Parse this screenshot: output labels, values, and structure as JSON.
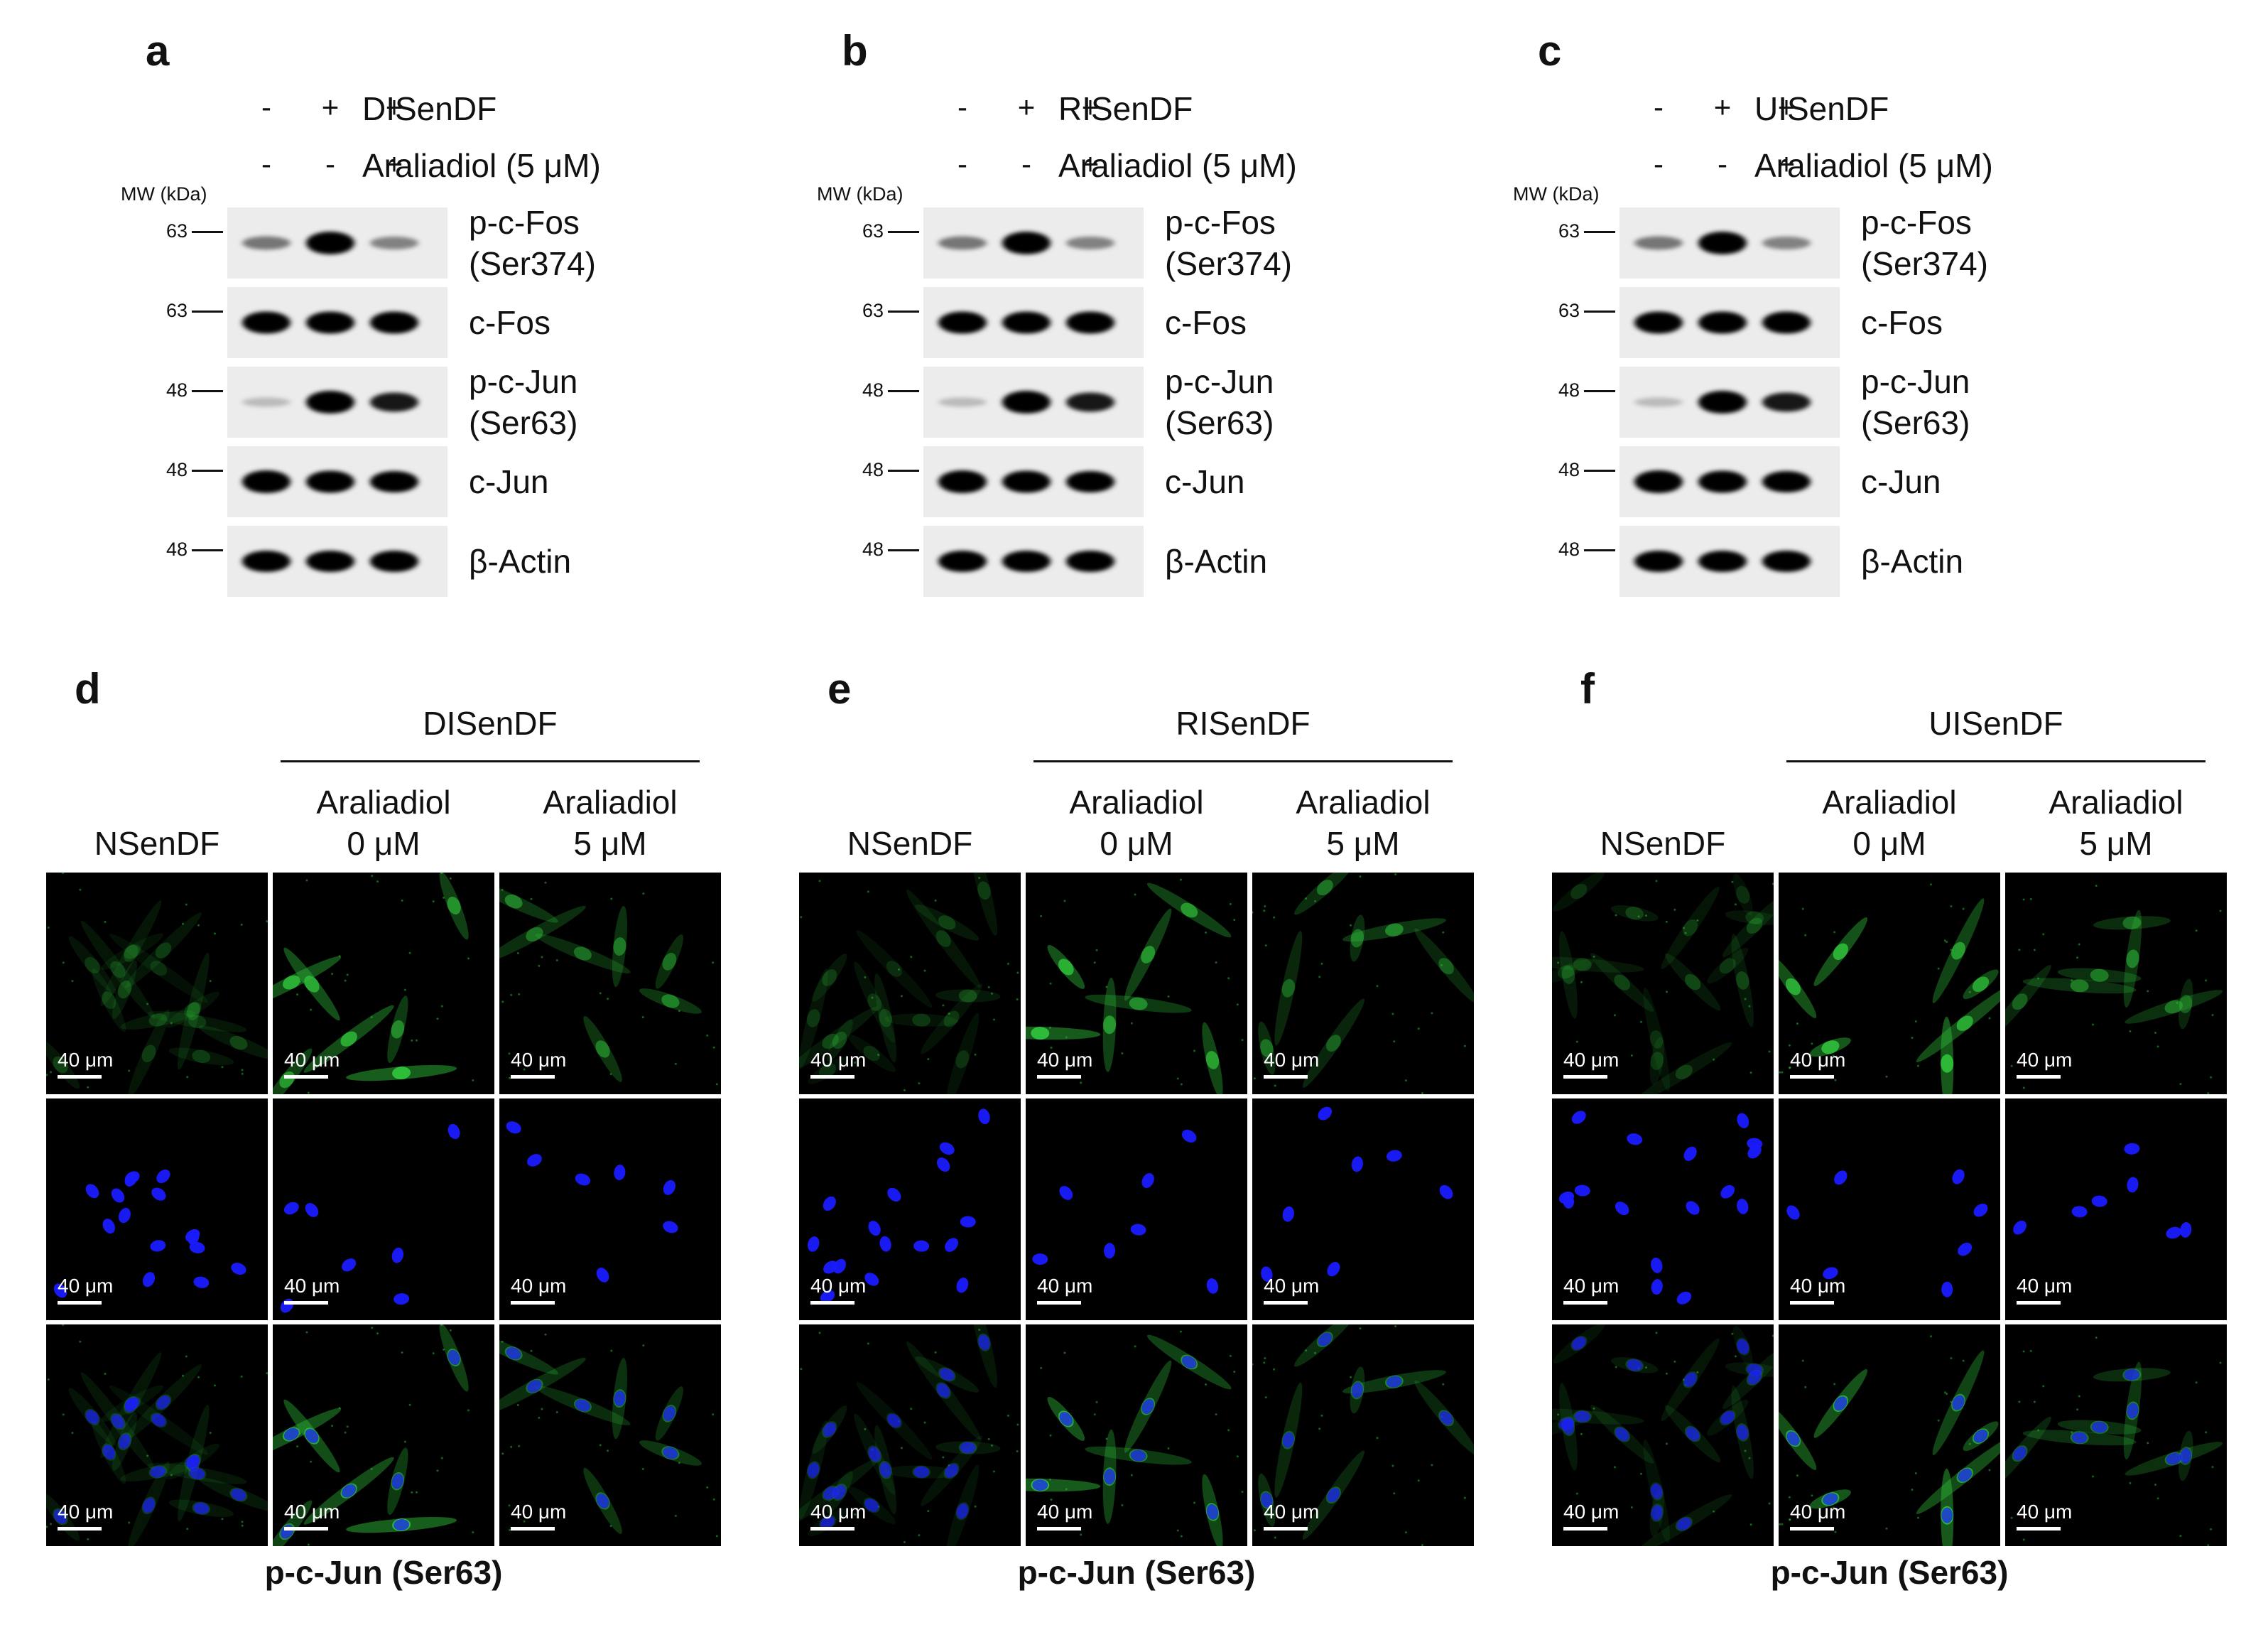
{
  "wb_panels": [
    {
      "letter": "a",
      "condition": "DISenDF"
    },
    {
      "letter": "b",
      "condition": "RISenDF"
    },
    {
      "letter": "c",
      "condition": "UISenDF"
    }
  ],
  "wb_common": {
    "treatment": "Araliadiol (5 μM)",
    "row1_signs": [
      "-",
      "+",
      "+"
    ],
    "row2_signs": [
      "-",
      "-",
      "+"
    ],
    "mw_title": "MW (kDa)",
    "blots": [
      {
        "label": "p-c-Fos\n(Ser374)",
        "mw": "63",
        "intensity": [
          0.35,
          1.0,
          0.3
        ]
      },
      {
        "label": "c-Fos",
        "mw": "63",
        "intensity": [
          0.95,
          0.95,
          0.95
        ]
      },
      {
        "label": "p-c-Jun\n(Ser63)",
        "mw": "48",
        "intensity": [
          0.06,
          1.0,
          0.75
        ]
      },
      {
        "label": "c-Jun",
        "mw": "48",
        "intensity": [
          1.0,
          0.95,
          0.9
        ]
      },
      {
        "label": "β-Actin",
        "mw": "48",
        "intensity": [
          0.9,
          0.9,
          0.9
        ]
      }
    ]
  },
  "if_panels": [
    {
      "letter": "d",
      "group": "DISenDF"
    },
    {
      "letter": "e",
      "group": "RISenDF"
    },
    {
      "letter": "f",
      "group": "UISenDF"
    }
  ],
  "if_common": {
    "control": "NSenDF",
    "dose0": "Araliadiol\n0 μM",
    "dose5": "Araliadiol\n5 μM",
    "scale_bar": "40 μm",
    "caption": "p-c-Jun (Ser63)"
  },
  "colors": {
    "green_channel": "#2fbf3a",
    "blue_channel": "#1a1aff",
    "background": "#000000"
  }
}
